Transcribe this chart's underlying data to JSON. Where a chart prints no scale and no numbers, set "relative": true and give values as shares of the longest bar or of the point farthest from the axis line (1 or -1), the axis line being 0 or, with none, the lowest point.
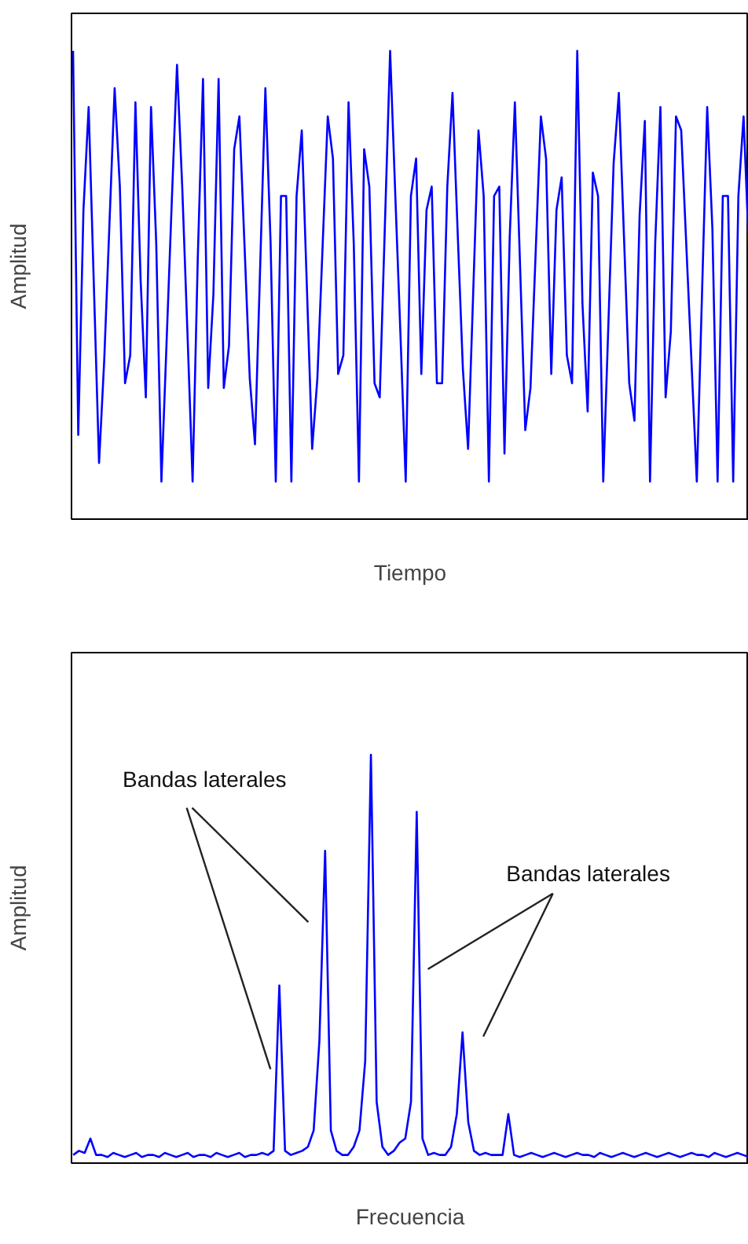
{
  "chart_data": [
    {
      "type": "line",
      "relative": true,
      "xlabel": "Tiempo",
      "ylabel": "Amplitud",
      "grid": false,
      "categories": [
        null,
        null,
        null,
        null,
        null,
        null,
        null,
        null,
        null,
        null,
        null,
        null,
        null,
        null,
        null,
        null,
        null,
        null,
        null,
        null,
        null,
        null,
        null,
        null,
        null,
        null,
        null,
        null,
        null,
        null,
        null,
        null,
        null,
        null,
        null,
        null,
        null,
        null,
        null,
        null,
        null,
        null,
        null,
        null,
        null,
        null,
        null,
        null,
        null,
        null,
        null,
        null,
        null,
        null,
        null,
        null,
        null,
        null,
        null,
        null,
        null,
        null,
        null,
        null,
        null,
        null,
        null,
        null,
        null,
        null,
        null,
        null,
        null,
        null,
        null,
        null,
        null,
        null,
        null,
        null,
        null,
        null,
        null,
        null,
        null,
        null,
        null,
        null,
        null,
        null,
        null,
        null,
        null,
        null,
        null,
        null,
        null,
        null,
        null,
        null,
        null,
        null,
        null,
        null,
        null,
        null,
        null,
        null,
        null,
        null,
        null,
        null,
        null,
        null,
        null,
        null,
        null,
        null,
        null,
        null,
        null,
        null,
        null,
        null,
        null,
        null,
        null,
        null,
        null,
        null,
        null
      ],
      "series": [
        {
          "color": "#0000ff",
          "values": [
            1,
            0.18,
            0.66,
            0.88,
            0.5,
            0.12,
            0.34,
            0.63,
            0.92,
            0.71,
            0.29,
            0.35,
            0.89,
            0.51,
            0.26,
            0.88,
            0.59,
            0.08,
            0.38,
            0.68,
            0.97,
            0.71,
            0.4,
            0.08,
            0.56,
            0.94,
            0.28,
            0.48,
            0.94,
            0.28,
            0.37,
            0.79,
            0.86,
            0.58,
            0.3,
            0.16,
            0.54,
            0.92,
            0.59,
            0.08,
            0.69,
            0.69,
            0.08,
            0.69,
            0.83,
            0.49,
            0.15,
            0.3,
            0.58,
            0.86,
            0.77,
            0.31,
            0.35,
            0.89,
            0.59,
            0.08,
            0.79,
            0.71,
            0.29,
            0.26,
            0.63,
            1,
            0.69,
            0.39,
            0.08,
            0.69,
            0.77,
            0.31,
            0.66,
            0.71,
            0.29,
            0.29,
            0.71,
            0.91,
            0.61,
            0.32,
            0.15,
            0.49,
            0.83,
            0.69,
            0.08,
            0.69,
            0.71,
            0.14,
            0.6,
            0.89,
            0.54,
            0.19,
            0.28,
            0.57,
            0.86,
            0.77,
            0.31,
            0.66,
            0.73,
            0.35,
            0.29,
            1,
            0.46,
            0.23,
            0.74,
            0.69,
            0.08,
            0.42,
            0.76,
            0.91,
            0.6,
            0.29,
            0.21,
            0.65,
            0.85,
            0.08,
            0.59,
            0.88,
            0.26,
            0.4,
            0.86,
            0.83,
            0.58,
            0.33,
            0.08,
            0.48,
            0.88,
            0.62,
            0.08,
            0.69,
            0.69,
            0.08,
            0.69,
            0.86,
            0.58
          ]
        }
      ]
    },
    {
      "type": "line",
      "relative": true,
      "xlabel": "Frecuencia",
      "ylabel": "Amplitud",
      "grid": false,
      "annotations": [
        "Bandas laterales",
        "Bandas laterales"
      ],
      "categories": [
        null,
        null,
        null,
        null,
        null,
        null,
        null,
        null,
        null,
        null,
        null,
        null,
        null,
        null,
        null,
        null,
        null,
        null,
        null,
        null,
        null,
        null,
        null,
        null,
        null,
        null,
        null,
        null,
        null,
        null,
        null,
        null,
        null,
        null,
        null,
        null,
        null,
        null,
        null,
        null,
        null,
        null,
        null,
        null,
        null,
        null,
        null,
        null,
        null,
        null,
        null,
        null,
        null,
        null,
        null,
        null,
        null,
        null,
        null,
        null,
        null,
        null,
        null,
        null,
        null,
        null,
        null,
        null,
        null,
        null,
        null,
        null,
        null,
        null,
        null,
        null,
        null,
        null,
        null,
        null,
        null,
        null,
        null,
        null,
        null,
        null,
        null,
        null,
        null,
        null,
        null,
        null,
        null,
        null,
        null,
        null,
        null,
        null,
        null,
        null,
        null,
        null,
        null,
        null,
        null,
        null,
        null,
        null,
        null,
        null,
        null,
        null,
        null,
        null,
        null,
        null,
        null,
        null,
        null
      ],
      "series": [
        {
          "color": "#0000ff",
          "values": [
            0.02,
            0.03,
            0.025,
            0.06,
            0.02,
            0.02,
            0.015,
            0.025,
            0.02,
            0.015,
            0.02,
            0.025,
            0.015,
            0.02,
            0.02,
            0.015,
            0.025,
            0.02,
            0.015,
            0.02,
            0.025,
            0.015,
            0.02,
            0.02,
            0.015,
            0.025,
            0.02,
            0.015,
            0.02,
            0.025,
            0.015,
            0.02,
            0.02,
            0.025,
            0.02,
            0.03,
            0.435,
            0.03,
            0.02,
            0.025,
            0.03,
            0.04,
            0.08,
            0.3,
            0.765,
            0.08,
            0.03,
            0.02,
            0.02,
            0.04,
            0.08,
            0.25,
            1,
            0.15,
            0.04,
            0.02,
            0.03,
            0.05,
            0.06,
            0.15,
            0.86,
            0.06,
            0.02,
            0.025,
            0.02,
            0.02,
            0.04,
            0.12,
            0.32,
            0.1,
            0.03,
            0.02,
            0.025,
            0.02,
            0.02,
            0.02,
            0.12,
            0.02,
            0.015,
            0.02,
            0.025,
            0.02,
            0.015,
            0.02,
            0.025,
            0.02,
            0.015,
            0.02,
            0.025,
            0.02,
            0.02,
            0.015,
            0.025,
            0.02,
            0.015,
            0.02,
            0.025,
            0.02,
            0.015,
            0.02,
            0.025,
            0.02,
            0.015,
            0.02,
            0.025,
            0.02,
            0.015,
            0.02,
            0.025,
            0.02,
            0.02,
            0.015,
            0.025,
            0.02,
            0.015,
            0.02,
            0.025,
            0.02,
            0.015
          ]
        }
      ]
    }
  ]
}
